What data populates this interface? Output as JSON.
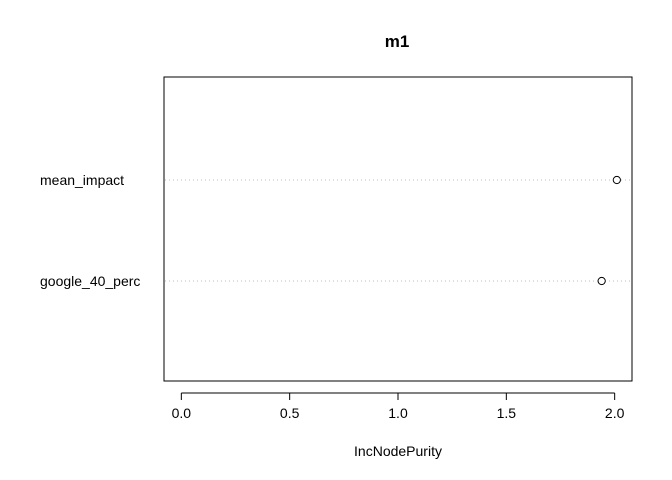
{
  "chart_data": {
    "type": "scatter",
    "title": "m1",
    "xlabel": "IncNodePurity",
    "ylabel": "",
    "xlim": [
      -0.08,
      2.08
    ],
    "x_ticks": [
      0.0,
      0.5,
      1.0,
      1.5,
      2.0
    ],
    "x_tick_labels": [
      "0.0",
      "0.5",
      "1.0",
      "1.5",
      "2.0"
    ],
    "grid": "dotted horizontal guide lines per variable",
    "legend": "none",
    "categories": [
      "mean_impact",
      "google_40_perc"
    ],
    "values": [
      2.01,
      1.94
    ],
    "point_style": "open circle"
  }
}
